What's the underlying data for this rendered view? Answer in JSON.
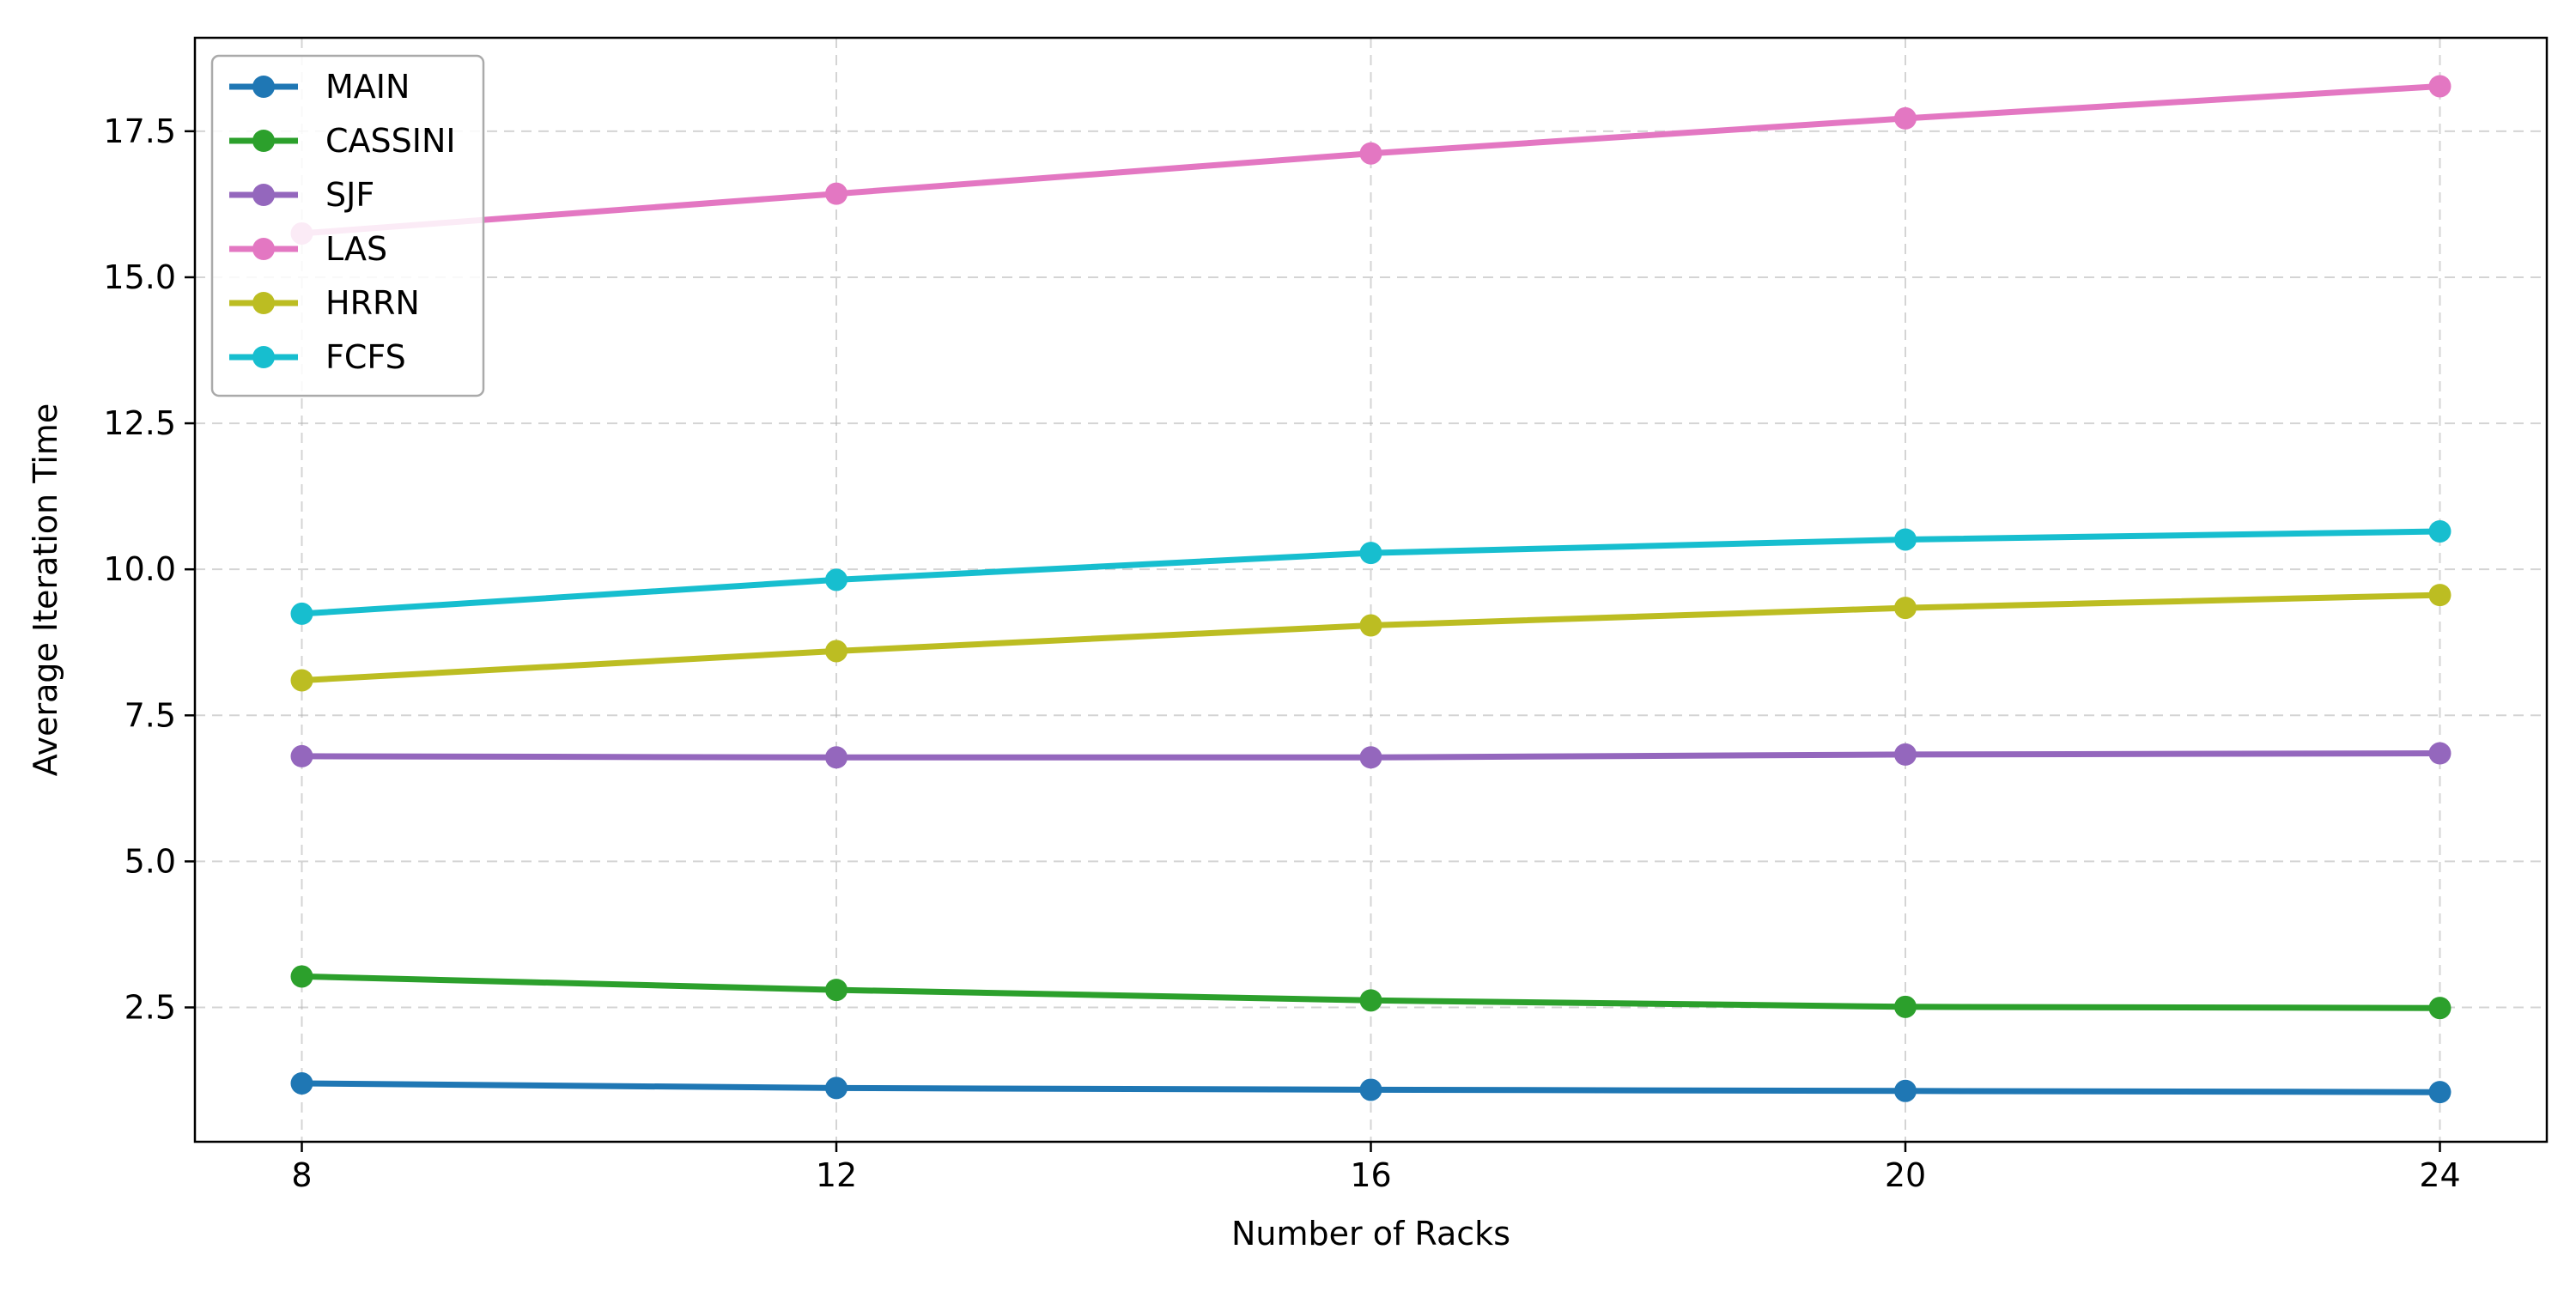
{
  "chart_data": {
    "type": "line",
    "xlabel": "Number of Racks",
    "ylabel": "Average Iteration Time",
    "x": [
      8,
      12,
      16,
      20,
      24
    ],
    "xticks": [
      8,
      12,
      16,
      20,
      24
    ],
    "xtick_labels": [
      "8",
      "12",
      "16",
      "20",
      "24"
    ],
    "yticks": [
      2.5,
      5.0,
      7.5,
      10.0,
      12.5,
      15.0,
      17.5
    ],
    "ytick_labels": [
      "2.5",
      "5.0",
      "7.5",
      "10.0",
      "12.5",
      "15.0",
      "17.5"
    ],
    "xlim": [
      7.2,
      24.8
    ],
    "ylim": [
      0.2,
      19.1
    ],
    "grid": true,
    "legend_position": "upper-left",
    "series": [
      {
        "name": "MAIN",
        "color": "#1f77b4",
        "values": [
          1.2,
          1.12,
          1.09,
          1.07,
          1.05
        ]
      },
      {
        "name": "CASSINI",
        "color": "#2ca02c",
        "values": [
          3.03,
          2.8,
          2.62,
          2.51,
          2.49
        ]
      },
      {
        "name": "SJF",
        "color": "#9467bd",
        "values": [
          6.8,
          6.78,
          6.78,
          6.83,
          6.85
        ]
      },
      {
        "name": "LAS",
        "color": "#e377c2",
        "values": [
          15.75,
          16.43,
          17.12,
          17.72,
          18.27
        ]
      },
      {
        "name": "HRRN",
        "color": "#bcbd22",
        "values": [
          8.1,
          8.6,
          9.04,
          9.34,
          9.56
        ]
      },
      {
        "name": "FCFS",
        "color": "#17becf",
        "values": [
          9.24,
          9.82,
          10.28,
          10.51,
          10.65
        ]
      }
    ]
  }
}
